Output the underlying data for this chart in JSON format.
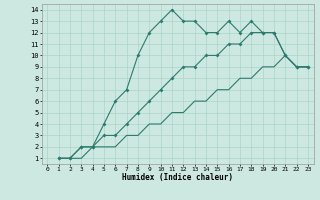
{
  "title": "",
  "xlabel": "Humidex (Indice chaleur)",
  "background_color": "#cce8e0",
  "grid_color": "#aad4cc",
  "line_color": "#2d7b6e",
  "xlim": [
    -0.5,
    23.5
  ],
  "ylim": [
    0.5,
    14.5
  ],
  "xticks": [
    0,
    1,
    2,
    3,
    4,
    5,
    6,
    7,
    8,
    9,
    10,
    11,
    12,
    13,
    14,
    15,
    16,
    17,
    18,
    19,
    20,
    21,
    22,
    23
  ],
  "yticks": [
    1,
    2,
    3,
    4,
    5,
    6,
    7,
    8,
    9,
    10,
    11,
    12,
    13,
    14
  ],
  "line1_x": [
    1,
    2,
    3,
    4,
    5,
    6,
    7,
    8,
    9,
    10,
    11,
    12,
    13,
    14,
    15,
    16,
    17,
    18,
    19,
    20,
    21,
    22,
    23
  ],
  "line1_y": [
    1,
    1,
    2,
    2,
    4,
    6,
    7,
    10,
    12,
    13,
    14,
    13,
    13,
    12,
    12,
    13,
    12,
    13,
    12,
    12,
    10,
    9,
    9
  ],
  "line2_x": [
    1,
    2,
    3,
    4,
    5,
    6,
    7,
    8,
    9,
    10,
    11,
    12,
    13,
    14,
    15,
    16,
    17,
    18,
    19,
    20,
    21,
    22,
    23
  ],
  "line2_y": [
    1,
    1,
    2,
    2,
    3,
    3,
    4,
    5,
    6,
    7,
    8,
    9,
    9,
    10,
    10,
    11,
    11,
    12,
    12,
    12,
    10,
    9,
    9
  ],
  "line3_x": [
    1,
    2,
    3,
    4,
    5,
    6,
    7,
    8,
    9,
    10,
    11,
    12,
    13,
    14,
    15,
    16,
    17,
    18,
    19,
    20,
    21,
    22,
    23
  ],
  "line3_y": [
    1,
    1,
    1,
    2,
    2,
    2,
    3,
    3,
    4,
    4,
    5,
    5,
    6,
    6,
    7,
    7,
    8,
    8,
    9,
    9,
    10,
    9,
    9
  ]
}
